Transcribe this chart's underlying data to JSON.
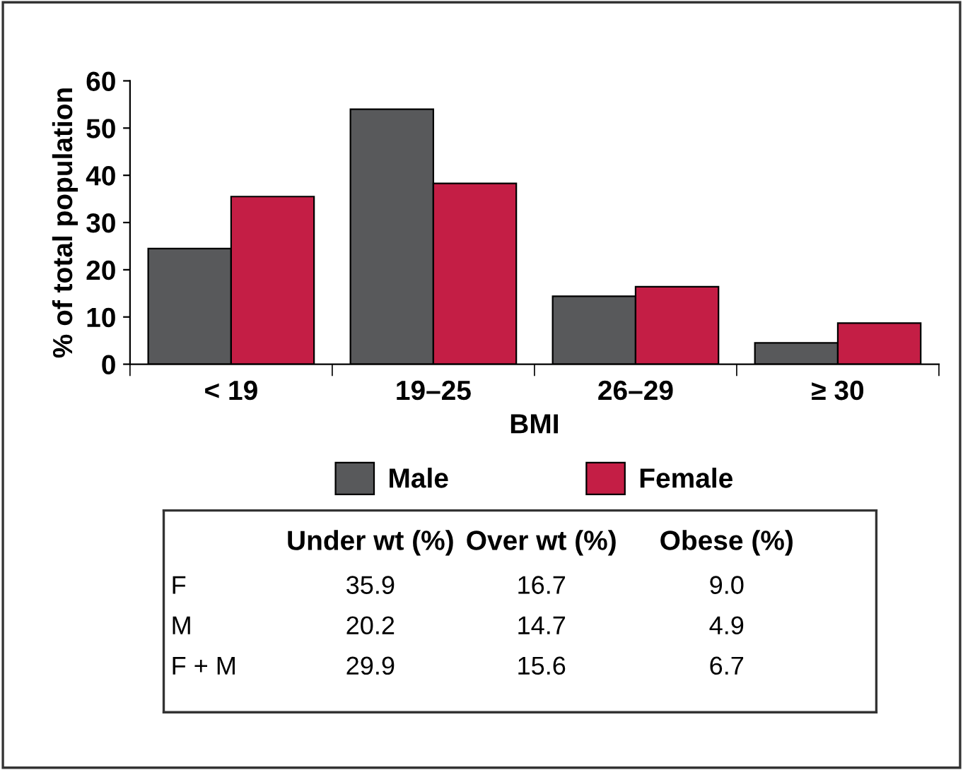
{
  "chart_data": [
    {
      "type": "bar",
      "xlabel": "BMI",
      "ylabel": "% of total population",
      "categories": [
        "< 19",
        "19–25",
        "26–29",
        "≥ 30"
      ],
      "series": [
        {
          "name": "Male",
          "color": "#58595b",
          "values": [
            24.5,
            54.0,
            14.4,
            4.5
          ]
        },
        {
          "name": "Female",
          "color": "#c41e45",
          "values": [
            35.5,
            38.3,
            16.4,
            8.7
          ]
        }
      ],
      "ylim": [
        0,
        60
      ],
      "yticks": [
        0,
        10,
        20,
        30,
        40,
        50,
        60
      ],
      "grid": false,
      "legend": "bottom"
    },
    {
      "type": "other",
      "annotations": [
        "Under wt (%)",
        "Over wt (%)",
        "Obese (%)",
        "F",
        "35.9",
        "16.7",
        "9.0",
        "M",
        "20.2",
        "14.7",
        "4.9",
        "F + M",
        "29.9",
        "15.6",
        "6.7"
      ]
    }
  ]
}
